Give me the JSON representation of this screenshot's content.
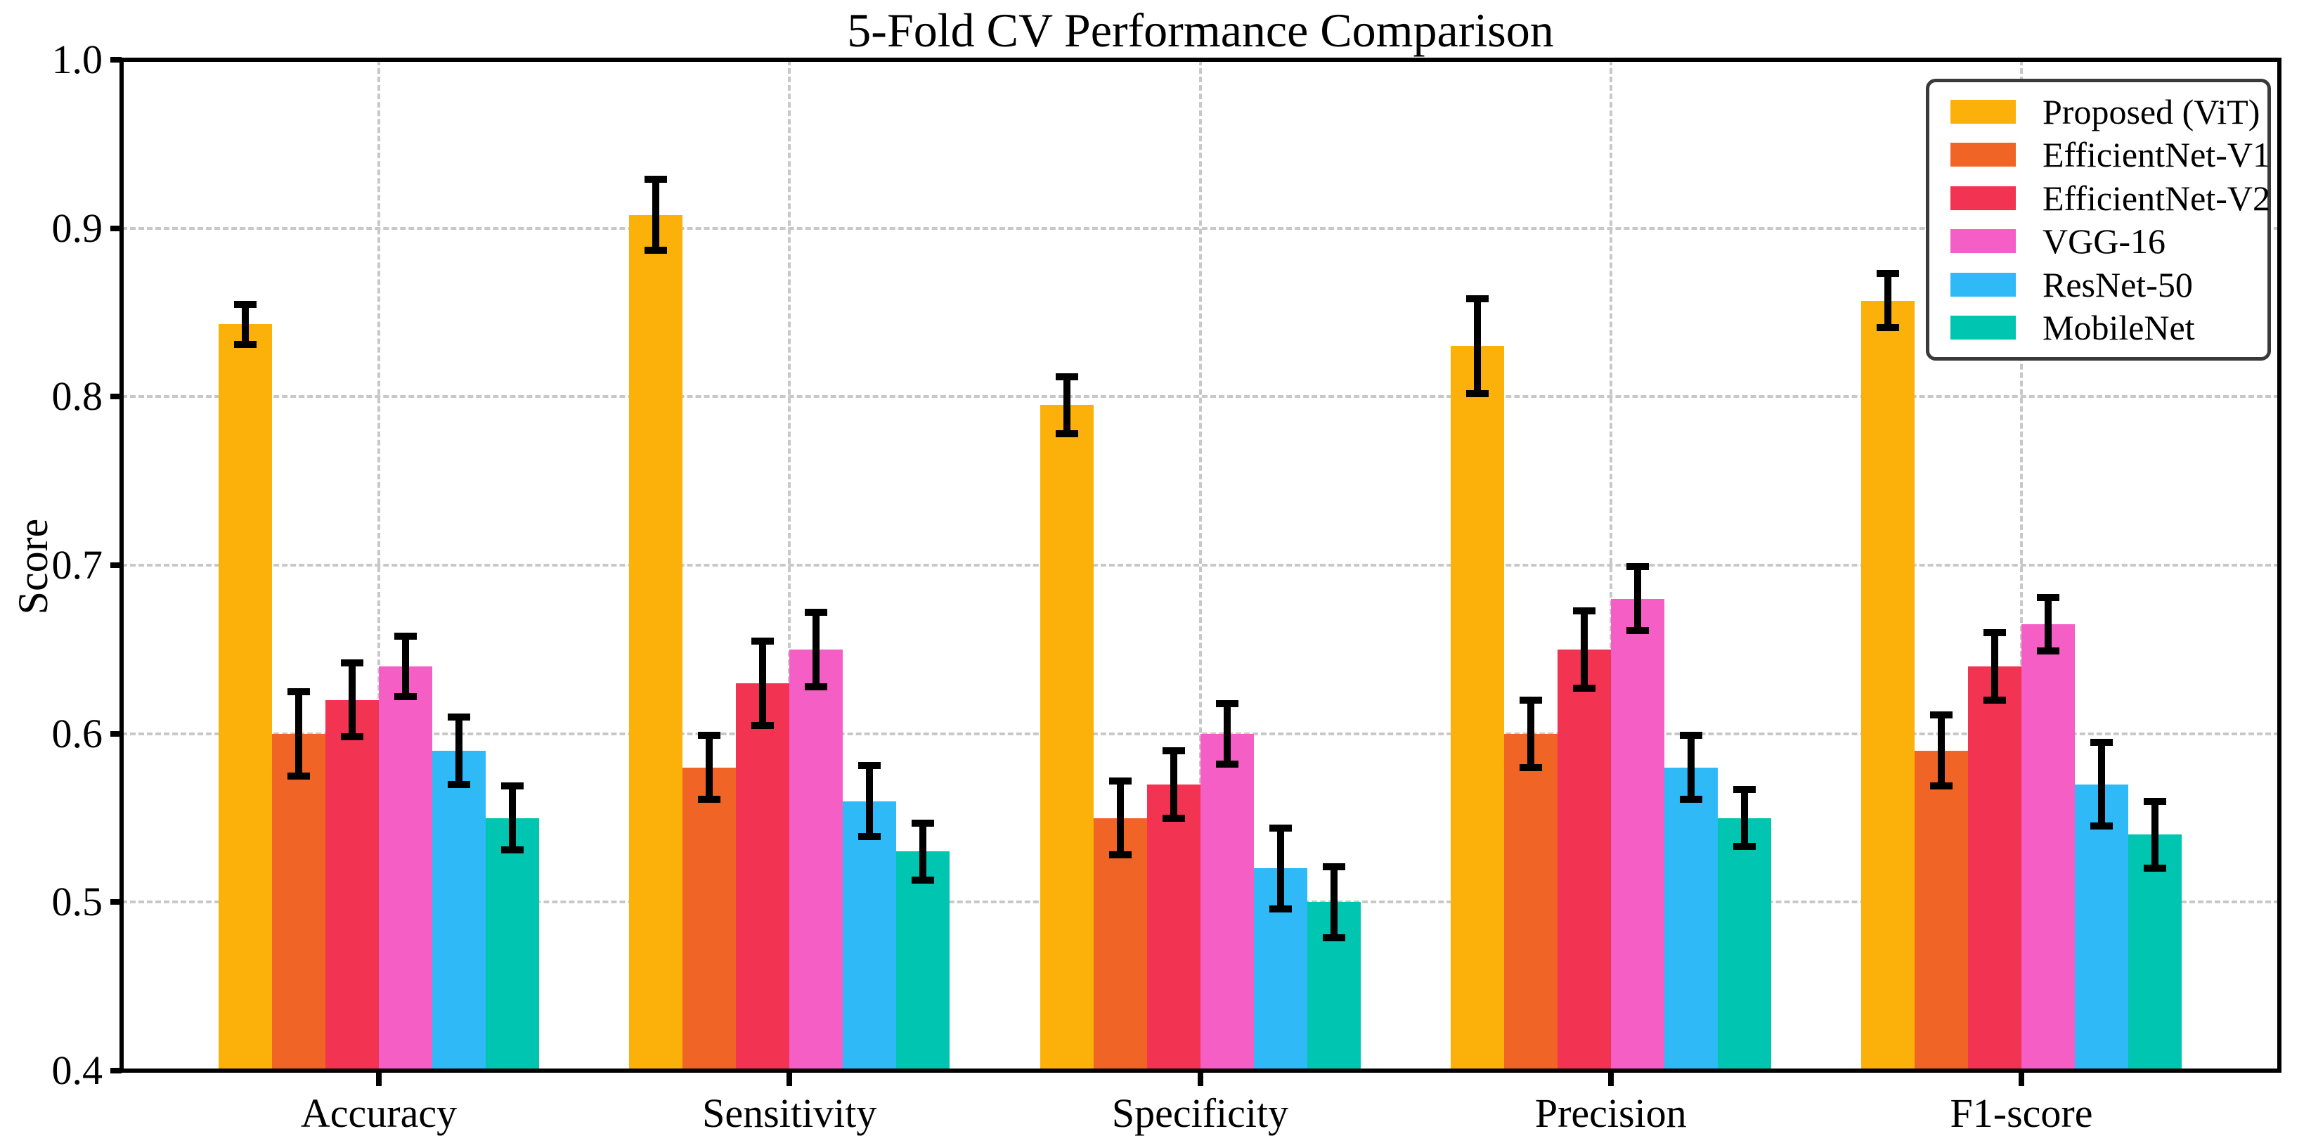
{
  "chart_data": {
    "type": "bar",
    "title": "5-Fold CV Performance Comparison",
    "xlabel": "",
    "ylabel": "Score",
    "ylim": [
      0.4,
      1.0
    ],
    "yticks": [
      0.4,
      0.5,
      0.6,
      0.7,
      0.8,
      0.9,
      1.0
    ],
    "grid": true,
    "grid_style": "dashed",
    "legend_position": "upper right",
    "categories": [
      "Accuracy",
      "Sensitivity",
      "Specificity",
      "Precision",
      "F1-score"
    ],
    "series": [
      {
        "name": "Proposed (ViT)",
        "color": "#FBB109",
        "values": [
          0.843,
          0.908,
          0.795,
          0.83,
          0.857
        ],
        "errors": [
          0.012,
          0.021,
          0.017,
          0.028,
          0.016
        ]
      },
      {
        "name": "EfficientNet-V1",
        "color": "#F06526",
        "values": [
          0.6,
          0.58,
          0.55,
          0.6,
          0.59
        ],
        "errors": [
          0.025,
          0.019,
          0.022,
          0.02,
          0.021
        ]
      },
      {
        "name": "EfficientNet-V2",
        "color": "#F23352",
        "values": [
          0.62,
          0.63,
          0.57,
          0.65,
          0.64
        ],
        "errors": [
          0.022,
          0.025,
          0.02,
          0.023,
          0.02
        ]
      },
      {
        "name": "VGG-16",
        "color": "#F45EC5",
        "values": [
          0.64,
          0.65,
          0.6,
          0.68,
          0.665
        ],
        "errors": [
          0.018,
          0.022,
          0.018,
          0.019,
          0.016
        ]
      },
      {
        "name": "ResNet-50",
        "color": "#2FB9F6",
        "values": [
          0.59,
          0.56,
          0.52,
          0.58,
          0.57
        ],
        "errors": [
          0.02,
          0.021,
          0.024,
          0.019,
          0.025
        ]
      },
      {
        "name": "MobileNet",
        "color": "#00C5B1",
        "values": [
          0.55,
          0.53,
          0.5,
          0.55,
          0.54
        ],
        "errors": [
          0.019,
          0.017,
          0.021,
          0.017,
          0.02
        ]
      }
    ]
  }
}
